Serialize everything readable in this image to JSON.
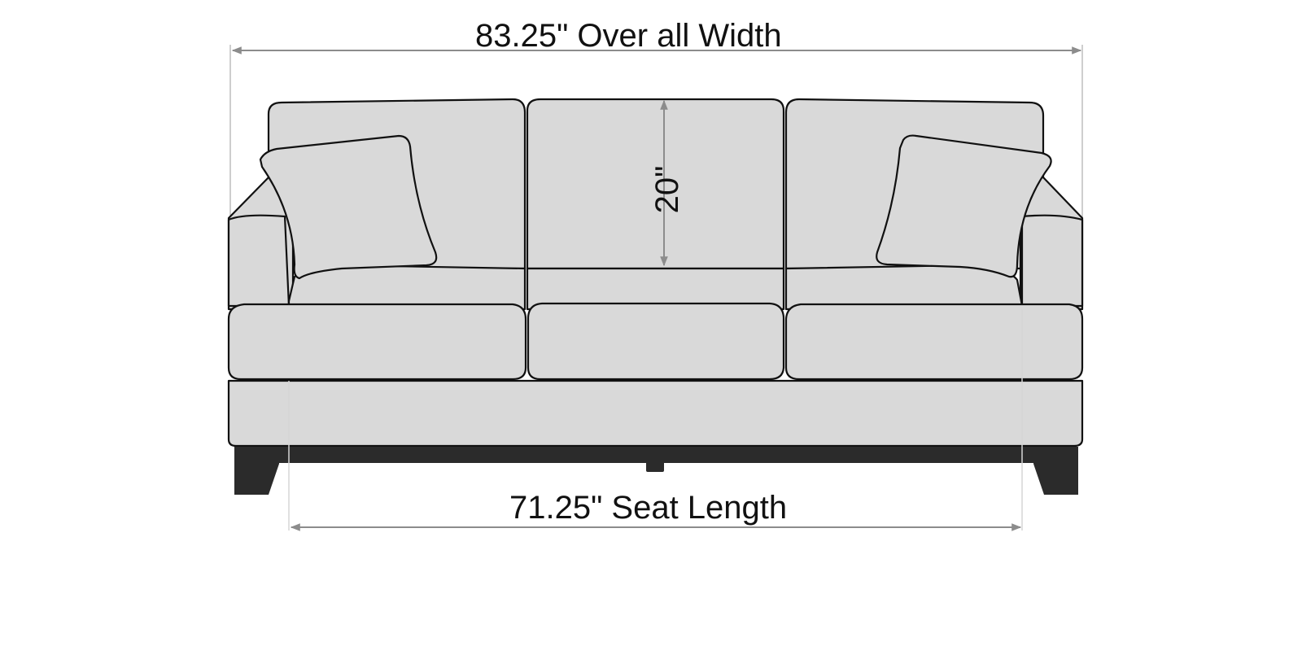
{
  "dimensions": {
    "overall_width": "83.25\" Over all Width",
    "back_height": "20\"",
    "seat_length": "71.25\" Seat Length"
  },
  "colors": {
    "upholstery": "#d9d9d9",
    "outline": "#111111",
    "legs": "#2b2b2b",
    "dimension_line": "#8c8c8c"
  }
}
